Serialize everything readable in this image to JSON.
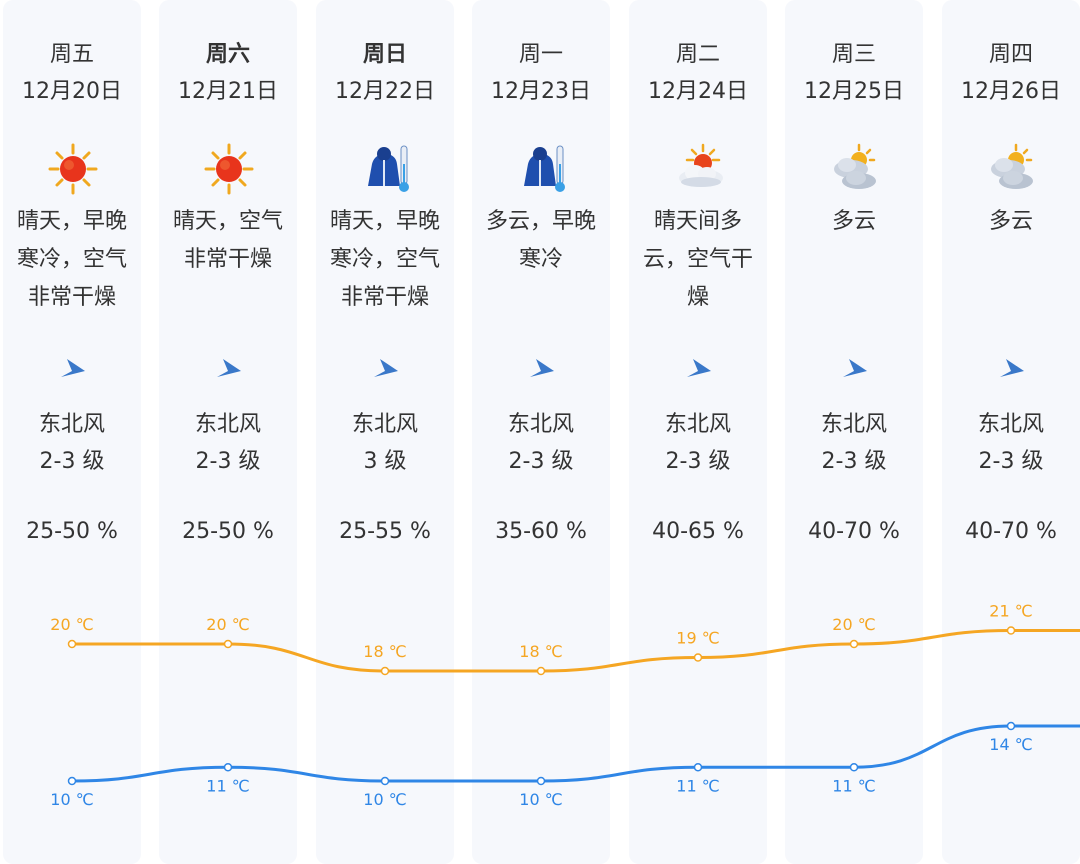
{
  "days": [
    {
      "weekday": "周五",
      "date": "12月20日",
      "icon": "sun-icon",
      "desc": "晴天，早晚寒冷，空气非常干燥",
      "wind_dir": "东北风",
      "wind_level": "2-3 级",
      "humidity": "25-50 %",
      "bold": false
    },
    {
      "weekday": "周六",
      "date": "12月21日",
      "icon": "sun-icon",
      "desc": "晴天，空气非常干燥",
      "wind_dir": "东北风",
      "wind_level": "2-3 级",
      "humidity": "25-50 %",
      "bold": true
    },
    {
      "weekday": "周日",
      "date": "12月22日",
      "icon": "cold-coat-thermometer-icon",
      "desc": "晴天，早晚寒冷，空气非常干燥",
      "wind_dir": "东北风",
      "wind_level": "3 级",
      "humidity": "25-55 %",
      "bold": true
    },
    {
      "weekday": "周一",
      "date": "12月23日",
      "icon": "cold-coat-thermometer-icon",
      "desc": "多云，早晚寒冷",
      "wind_dir": "东北风",
      "wind_level": "2-3 级",
      "humidity": "35-60 %",
      "bold": false
    },
    {
      "weekday": "周二",
      "date": "12月24日",
      "icon": "sun-behind-cloud-icon",
      "desc": "晴天间多云，空气干燥",
      "wind_dir": "东北风",
      "wind_level": "2-3 级",
      "humidity": "40-65 %",
      "bold": false
    },
    {
      "weekday": "周三",
      "date": "12月25日",
      "icon": "partly-cloudy-icon",
      "desc": "多云",
      "wind_dir": "东北风",
      "wind_level": "2-3 级",
      "humidity": "40-70 %",
      "bold": false
    },
    {
      "weekday": "周四",
      "date": "12月26日",
      "icon": "partly-cloudy-icon",
      "desc": "多云",
      "wind_dir": "东北风",
      "wind_level": "2-3 级",
      "humidity": "40-70 %",
      "bold": false
    }
  ],
  "chart_data": {
    "type": "line",
    "categories": [
      "12月20日",
      "12月21日",
      "12月22日",
      "12月23日",
      "12月24日",
      "12月25日",
      "12月26日"
    ],
    "series": [
      {
        "values": [
          20,
          20,
          18,
          18,
          19,
          20,
          21
        ],
        "labels": [
          "20 ℃",
          "20 ℃",
          "18 ℃",
          "18 ℃",
          "19 ℃",
          "20 ℃",
          "21 ℃"
        ],
        "color": "#f5a623"
      },
      {
        "values": [
          10,
          11,
          10,
          10,
          11,
          11,
          14
        ],
        "labels": [
          "10 ℃",
          "11 ℃",
          "10 ℃",
          "10 ℃",
          "11 ℃",
          "11 ℃",
          "14 ℃"
        ],
        "color": "#2f86e6"
      }
    ],
    "grid": false,
    "legend": "none"
  },
  "colors": {
    "high_temp": "#f5a623",
    "low_temp": "#2f86e6",
    "wind_arrow": "#3a78c9",
    "column_bg": "#f6f8fc"
  }
}
